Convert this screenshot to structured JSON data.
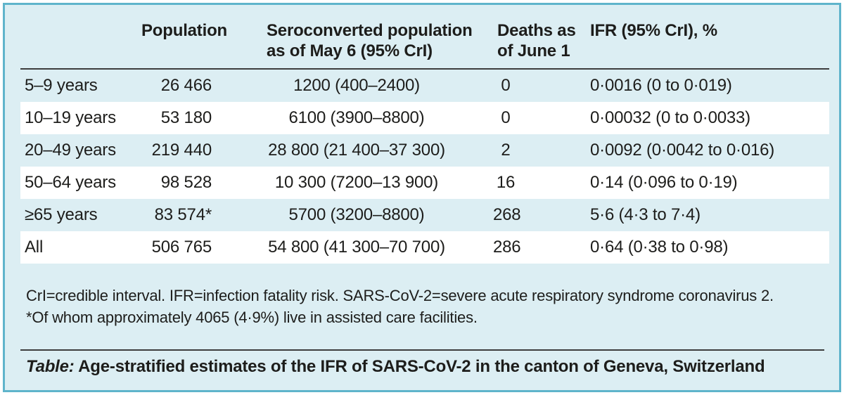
{
  "colors": {
    "card_background": "#dceef3",
    "card_border": "#5fb4cb",
    "stripe": "#ffffff",
    "rule": "#3d3d3d",
    "text": "#1d1d1b"
  },
  "table": {
    "headers": {
      "age_group": "",
      "population": "Population",
      "seroconverted": "Seroconverted population\nas of May 6 (95% CrI)",
      "deaths": "Deaths as\nof June 1",
      "ifr": "IFR (95% CrI), %"
    },
    "rows": [
      {
        "age": "5–9 years",
        "population": "26 466",
        "seroconverted": "1200 (400–2400)",
        "deaths": "0",
        "ifr": "0·0016 (0 to 0·019)"
      },
      {
        "age": "10–19 years",
        "population": "53 180",
        "seroconverted": "6100 (3900–8800)",
        "deaths": "0",
        "ifr": "0·00032 (0 to 0·0033)"
      },
      {
        "age": "20–49 years",
        "population": "219 440",
        "seroconverted": "28 800 (21 400–37 300)",
        "deaths": "2",
        "ifr": "0·0092 (0·0042 to 0·016)"
      },
      {
        "age": "50–64 years",
        "population": "98 528",
        "seroconverted": "10 300 (7200–13 900)",
        "deaths": "16",
        "ifr": "0·14 (0·096 to 0·19)"
      },
      {
        "age": "≥65 years",
        "population": "83 574*",
        "seroconverted": "5700 (3200–8800)",
        "deaths": "268",
        "ifr": "5·6 (4·3 to 7·4)"
      },
      {
        "age": "All",
        "population": "506 765",
        "seroconverted": "54 800 (41 300–70 700)",
        "deaths": "286",
        "ifr": "0·64 (0·38 to 0·98)"
      }
    ]
  },
  "footnotes": [
    "CrI=credible interval. IFR=infection fatality risk. SARS-CoV-2=severe acute respiratory syndrome coronavirus 2.",
    "*Of whom approximately 4065 (4·9%) live in assisted care facilities."
  ],
  "caption": {
    "label": "Table:",
    "text": "Age-stratified estimates of the IFR of SARS-CoV-2 in the canton of Geneva, Switzerland"
  }
}
